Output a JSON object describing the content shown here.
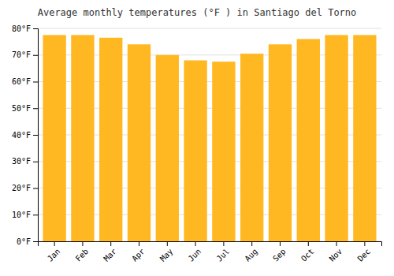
{
  "chart_data": {
    "type": "bar",
    "title": "Average monthly temperatures (°F ) in Santiago del Torno",
    "categories": [
      "Jan",
      "Feb",
      "Mar",
      "Apr",
      "May",
      "Jun",
      "Jul",
      "Aug",
      "Sep",
      "Oct",
      "Nov",
      "Dec"
    ],
    "values": [
      77.5,
      77.5,
      76.5,
      74.0,
      70.0,
      68.0,
      67.5,
      70.5,
      74.0,
      76.0,
      77.5,
      77.5
    ],
    "color": "#FFB822",
    "ylim": [
      0,
      80
    ],
    "yticks": [
      {
        "value": 0,
        "label": "0°F"
      },
      {
        "value": 10,
        "label": "10°F"
      },
      {
        "value": 20,
        "label": "20°F"
      },
      {
        "value": 30,
        "label": "30°F"
      },
      {
        "value": 40,
        "label": "40°F"
      },
      {
        "value": 50,
        "label": "50°F"
      },
      {
        "value": 60,
        "label": "60°F"
      },
      {
        "value": 70,
        "label": "70°F"
      },
      {
        "value": 80,
        "label": "80°F"
      }
    ],
    "grid": true
  }
}
